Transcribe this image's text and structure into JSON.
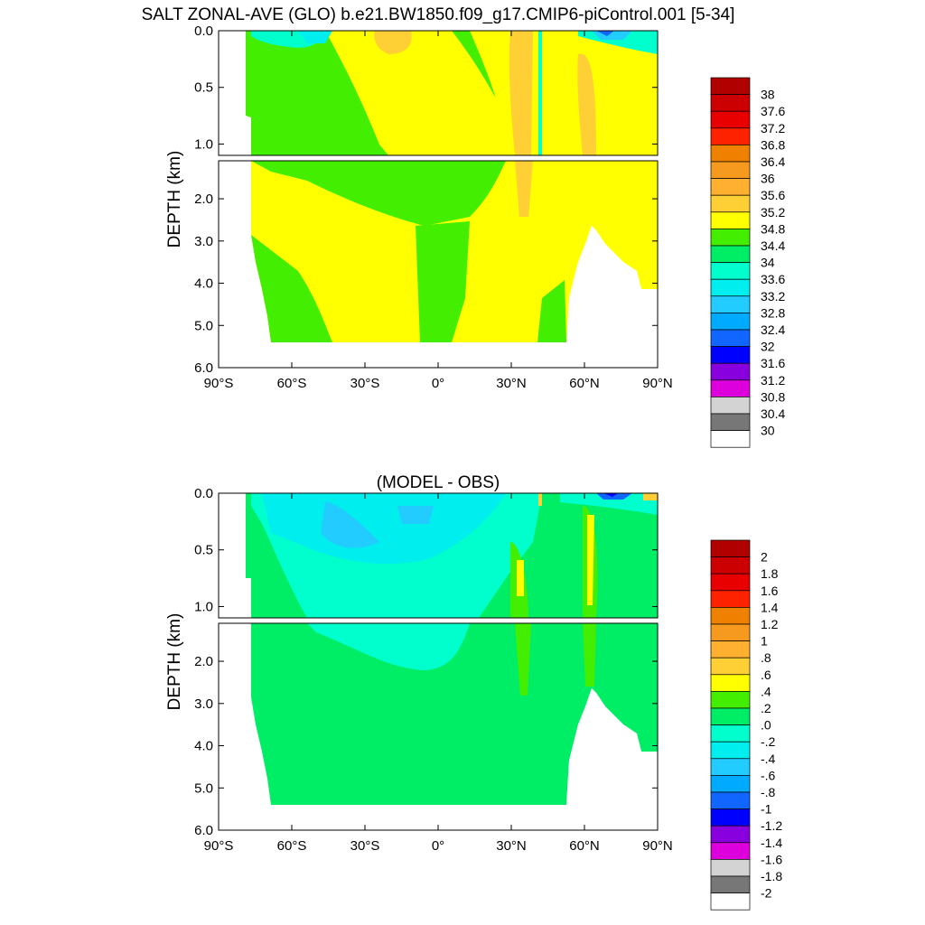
{
  "title": "SALT ZONAL-AVE (GLO) b.e21.BW1850.f09_g17.CMIP6-piControl.001 [5-34]",
  "chart_data": [
    {
      "type": "heatmap",
      "title": "",
      "ylabel": "DEPTH (km)",
      "xlabel": "",
      "x_ticks": [
        "90°S",
        "60°S",
        "30°S",
        "0°",
        "30°N",
        "60°N",
        "90°N"
      ],
      "x_range": [
        -90,
        90
      ],
      "upper_y_ticks": [
        "0.0",
        "0.5",
        "1.0"
      ],
      "lower_y_ticks": [
        "2.0",
        "3.0",
        "4.0",
        "5.0",
        "6.0"
      ],
      "upper_depth_range": [
        0,
        1.1
      ],
      "lower_depth_range": [
        1.1,
        6.0
      ],
      "colorbar": {
        "labels": [
          "38",
          "37.6",
          "37.2",
          "36.8",
          "36.4",
          "36",
          "35.6",
          "35.2",
          "34.8",
          "34.4",
          "34",
          "33.6",
          "33.2",
          "32.8",
          "32.4",
          "32",
          "31.6",
          "31.2",
          "30.8",
          "30.4",
          "30"
        ],
        "colors": [
          "#b00000",
          "#cc0000",
          "#e80000",
          "#ff2200",
          "#f08000",
          "#f59a1e",
          "#ffb030",
          "#ffd035",
          "#ffff00",
          "#44ee00",
          "#00ee66",
          "#00ffcc",
          "#00eeee",
          "#22ccff",
          "#00aaff",
          "#1166ff",
          "#0000ff",
          "#8800dd",
          "#dd00dd",
          "#d3d3d3",
          "#777777",
          "#ffffff"
        ]
      }
    },
    {
      "type": "heatmap",
      "title": "(MODEL - OBS)",
      "ylabel": "DEPTH (km)",
      "xlabel": "",
      "x_ticks": [
        "90°S",
        "60°S",
        "30°S",
        "0°",
        "30°N",
        "60°N",
        "90°N"
      ],
      "x_range": [
        -90,
        90
      ],
      "upper_y_ticks": [
        "0.0",
        "0.5",
        "1.0"
      ],
      "lower_y_ticks": [
        "2.0",
        "3.0",
        "4.0",
        "5.0",
        "6.0"
      ],
      "upper_depth_range": [
        0,
        1.1
      ],
      "lower_depth_range": [
        1.1,
        6.0
      ],
      "colorbar": {
        "labels": [
          "2",
          "1.8",
          "1.6",
          "1.4",
          "1.2",
          "1",
          ".8",
          ".6",
          ".4",
          ".2",
          ".0",
          "-.2",
          "-.4",
          "-.6",
          "-.8",
          "-1",
          "-1.2",
          "-1.4",
          "-1.6",
          "-1.8",
          "-2"
        ],
        "colors": [
          "#b00000",
          "#cc0000",
          "#e80000",
          "#ff2200",
          "#f08000",
          "#f59a1e",
          "#ffb030",
          "#ffd035",
          "#ffff00",
          "#44ee00",
          "#00ee66",
          "#00ffcc",
          "#00eeee",
          "#22ccff",
          "#00aaff",
          "#1166ff",
          "#0000ff",
          "#8800dd",
          "#dd00dd",
          "#d3d3d3",
          "#777777",
          "#ffffff"
        ]
      }
    }
  ]
}
